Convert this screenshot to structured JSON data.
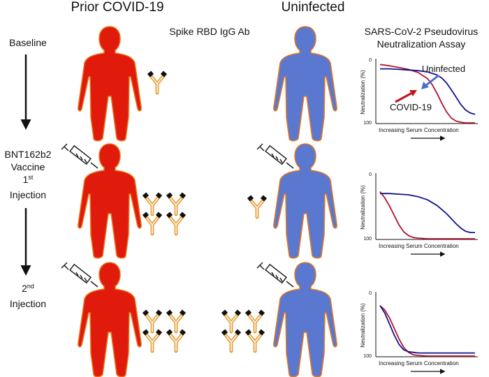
{
  "headers": {
    "prior": "Prior COVID-19",
    "uninfected": "Uninfected",
    "antibody": "Spike RBD IgG Ab",
    "assay_line1": "SARS-CoV-2 Pseudovirus",
    "assay_line2": "Neutralization Assay"
  },
  "stages": {
    "baseline": "Baseline",
    "first": {
      "line1": "BNT162b2",
      "line2": "Vaccine",
      "line3_num": "1",
      "line3_sup": "st",
      "line4": "Injection"
    },
    "second": {
      "line1_num": "2",
      "line1_sup": "nd",
      "line2": "Injection"
    }
  },
  "antibody_counts": {
    "baseline": {
      "prior": 1,
      "uninfected": 0
    },
    "first": {
      "prior": 4,
      "uninfected": 1
    },
    "second": {
      "prior": 4,
      "uninfected": 4
    }
  },
  "colors": {
    "prior_body": "#e01b0c",
    "uninfected_body": "#5a78cf",
    "body_outline": "#e8771c",
    "covid_curve": "#b3122f",
    "uninfected_curve": "#10138c",
    "uninfected_arrow": "#4a6fc7",
    "covid_arrow": "#c0141e"
  },
  "chart_data": [
    {
      "type": "line",
      "xlabel": "Increasing Serum Concentration",
      "ylabel": "Neutralization (%)",
      "yticks": [
        "0",
        "100"
      ],
      "y_inverted": true,
      "series": [
        {
          "name": "COVID-19",
          "x": [
            0,
            0.1,
            0.2,
            0.3,
            0.4,
            0.5,
            0.55,
            0.6,
            0.65,
            0.7,
            0.75,
            0.8,
            0.85,
            0.9,
            1.0
          ],
          "y": [
            5,
            7,
            10,
            13,
            18,
            28,
            38,
            52,
            68,
            82,
            92,
            97,
            99,
            100,
            100
          ]
        },
        {
          "name": "Uninfected",
          "x": [
            0,
            0.1,
            0.2,
            0.3,
            0.4,
            0.5,
            0.6,
            0.65,
            0.7,
            0.75,
            0.8,
            0.85,
            0.9,
            0.95,
            1.0
          ],
          "y": [
            12,
            12,
            13,
            14,
            15,
            17,
            22,
            27,
            35,
            46,
            58,
            70,
            79,
            84,
            86
          ]
        }
      ],
      "annotations": [
        "COVID-19",
        "Uninfected"
      ]
    },
    {
      "type": "line",
      "xlabel": "Increasing Serum Concentration",
      "ylabel": "Neutralization (%)",
      "yticks": [
        "0",
        "100"
      ],
      "y_inverted": true,
      "series": [
        {
          "x": [
            0,
            0.05,
            0.1,
            0.15,
            0.2,
            0.25,
            0.3,
            0.35,
            0.4,
            0.5,
            0.6,
            0.8,
            1.0
          ],
          "y": [
            25,
            35,
            48,
            63,
            78,
            89,
            95,
            98,
            99,
            100,
            100,
            100,
            100
          ]
        },
        {
          "x": [
            0,
            0.1,
            0.2,
            0.3,
            0.4,
            0.5,
            0.6,
            0.7,
            0.75,
            0.8,
            0.85,
            0.9,
            0.95,
            1.0
          ],
          "y": [
            28,
            28,
            29,
            30,
            33,
            38,
            47,
            60,
            68,
            76,
            83,
            88,
            90,
            90
          ]
        }
      ]
    },
    {
      "type": "line",
      "xlabel": "Increasing Serum Concentration",
      "ylabel": "Neutralization (%)",
      "yticks": [
        "0",
        "100"
      ],
      "y_inverted": true,
      "series": [
        {
          "x": [
            0,
            0.05,
            0.1,
            0.15,
            0.2,
            0.25,
            0.3,
            0.35,
            0.4,
            0.5,
            0.6,
            0.8,
            1.0
          ],
          "y": [
            18,
            25,
            38,
            55,
            72,
            86,
            94,
            98,
            99,
            100,
            100,
            100,
            100
          ]
        },
        {
          "x": [
            0,
            0.05,
            0.1,
            0.15,
            0.2,
            0.25,
            0.3,
            0.35,
            0.4,
            0.5,
            0.6,
            0.8,
            1.0
          ],
          "y": [
            18,
            30,
            48,
            66,
            81,
            90,
            93,
            94,
            95,
            95,
            95,
            95,
            95
          ]
        }
      ]
    }
  ]
}
